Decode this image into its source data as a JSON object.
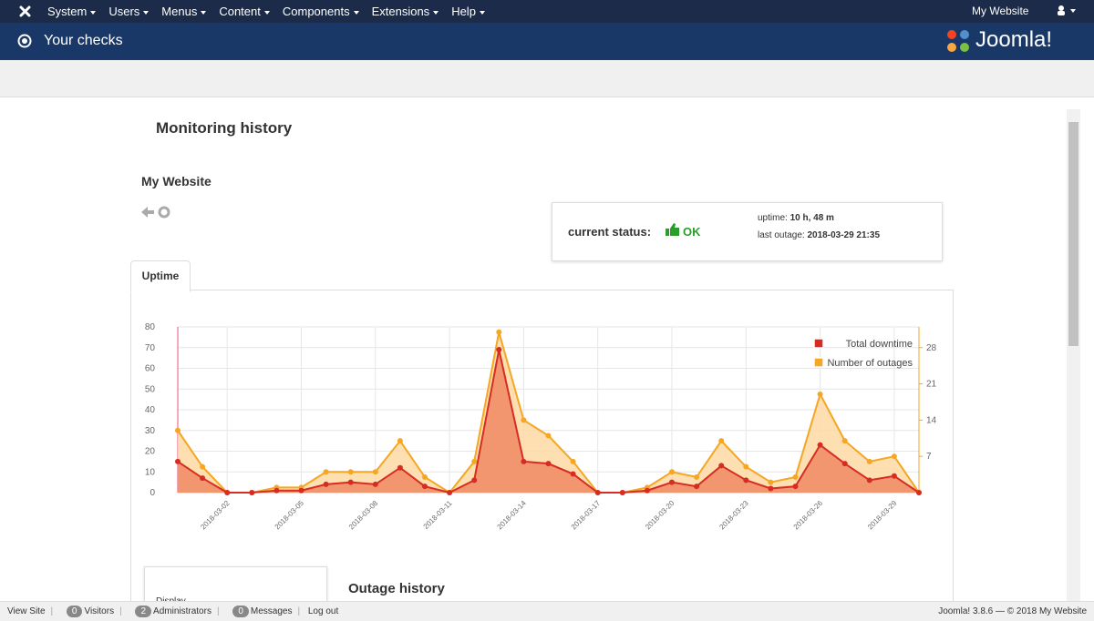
{
  "nav": {
    "menu": [
      "System",
      "Users",
      "Menus",
      "Content",
      "Components",
      "Extensions",
      "Help"
    ],
    "site_link": "My Website"
  },
  "header": {
    "title": "Your checks",
    "logo": "Joomla!"
  },
  "page": {
    "heading": "Monitoring history",
    "site_name": "My Website",
    "status": {
      "label": "current status:",
      "value": "OK",
      "uptime_label": "uptime:",
      "uptime": "10 h, 48 m",
      "last_outage_label": "last outage:",
      "last_outage": "2018-03-29 21:35"
    },
    "tab": "Uptime",
    "side_panel_label": "Display",
    "outage_heading": "Outage history"
  },
  "chart_data": {
    "type": "line",
    "categories": [
      null,
      null,
      "2018-03-02",
      null,
      null,
      "2018-03-05",
      null,
      null,
      "2018-03-08",
      null,
      null,
      "2018-03-11",
      null,
      null,
      "2018-03-14",
      null,
      null,
      "2018-03-17",
      null,
      null,
      "2018-03-20",
      null,
      null,
      "2018-03-23",
      null,
      null,
      "2018-03-26",
      null,
      null,
      "2018-03-29",
      null
    ],
    "series": [
      {
        "name": "Total downtime",
        "color": "#d62c22",
        "fill": "#ee8a63",
        "values": [
          15,
          7,
          0,
          0,
          1,
          1,
          4,
          5,
          4,
          12,
          3,
          0,
          6,
          69,
          15,
          14,
          9,
          0,
          0,
          1,
          5,
          3,
          13,
          6,
          2,
          3,
          23,
          14,
          6,
          8,
          0
        ]
      },
      {
        "name": "Number of outages",
        "color": "#f5a623",
        "fill": "#fdd9a3",
        "axis": "y2",
        "values": [
          12,
          5,
          0,
          0,
          1,
          1,
          4,
          4,
          4,
          10,
          3,
          0,
          6,
          31,
          14,
          11,
          6,
          0,
          0,
          1,
          4,
          3,
          10,
          5,
          2,
          3,
          19,
          10,
          6,
          7,
          0
        ]
      }
    ],
    "ylim": [
      0,
      80
    ],
    "yticks": [
      0,
      10,
      20,
      30,
      40,
      50,
      60,
      70,
      80
    ],
    "y2lim": [
      0,
      32
    ],
    "y2ticks": [
      7,
      14,
      21,
      28
    ],
    "grid": true,
    "legend": "upper right"
  },
  "footer": {
    "view_site": "View Site",
    "visitors": {
      "count": 0,
      "label": "Visitors"
    },
    "administrators": {
      "count": 2,
      "label": "Administrators"
    },
    "messages": {
      "count": 0,
      "label": "Messages"
    },
    "logout": "Log out",
    "copyright": "Joomla! 3.8.6 — © 2018 My Website"
  }
}
